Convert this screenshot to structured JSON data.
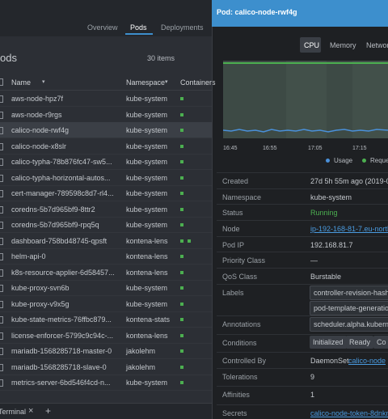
{
  "tabs": [
    "Overview",
    "Pods",
    "Deployments"
  ],
  "list": {
    "title": "ods",
    "count": "30 items",
    "columns": [
      "Name",
      "Namespace",
      "Containers"
    ],
    "rows": [
      {
        "name": "aws-node-hpz7f",
        "namespace": "kube-system",
        "containers": 1
      },
      {
        "name": "aws-node-r9rgs",
        "namespace": "kube-system",
        "containers": 1
      },
      {
        "name": "calico-node-rwf4g",
        "namespace": "kube-system",
        "containers": 1
      },
      {
        "name": "calico-node-x8slr",
        "namespace": "kube-system",
        "containers": 1
      },
      {
        "name": "calico-typha-78b876fc47-sw5...",
        "namespace": "kube-system",
        "containers": 1
      },
      {
        "name": "calico-typha-horizontal-autos...",
        "namespace": "kube-system",
        "containers": 1
      },
      {
        "name": "cert-manager-789598c8d7-rl4...",
        "namespace": "kube-system",
        "containers": 1
      },
      {
        "name": "coredns-5b7d965bf9-8ttr2",
        "namespace": "kube-system",
        "containers": 1
      },
      {
        "name": "coredns-5b7d965bf9-rpq5q",
        "namespace": "kube-system",
        "containers": 1
      },
      {
        "name": "dashboard-758bd48745-qpsft",
        "namespace": "kontena-lens",
        "containers": 2
      },
      {
        "name": "helm-api-0",
        "namespace": "kontena-lens",
        "containers": 1
      },
      {
        "name": "k8s-resource-applier-6d58457...",
        "namespace": "kontena-lens",
        "containers": 1
      },
      {
        "name": "kube-proxy-svn6b",
        "namespace": "kube-system",
        "containers": 1
      },
      {
        "name": "kube-proxy-v9x5g",
        "namespace": "kube-system",
        "containers": 1
      },
      {
        "name": "kube-state-metrics-76ffbc879...",
        "namespace": "kontena-stats",
        "containers": 1
      },
      {
        "name": "license-enforcer-5799c9c94c-...",
        "namespace": "kontena-lens",
        "containers": 1
      },
      {
        "name": "mariadb-1568285718-master-0",
        "namespace": "jakolehm",
        "containers": 1
      },
      {
        "name": "mariadb-1568285718-slave-0",
        "namespace": "jakolehm",
        "containers": 1
      },
      {
        "name": "metrics-server-6bd546f4cd-n...",
        "namespace": "kube-system",
        "containers": 1
      }
    ]
  },
  "footer": {
    "terminal": "Terminal",
    "close": "×",
    "add": "+"
  },
  "details": {
    "title": "Pod: calico-node-rwf4g",
    "metric_tabs": [
      "CPU",
      "Memory",
      "Networ"
    ],
    "times": [
      "16:45",
      "16:55",
      "17:05",
      "17:15"
    ],
    "legend": [
      "Usage",
      "Reque"
    ],
    "fields": [
      {
        "label": "Created",
        "values": [
          "27d 5h 55m ago (2019-08"
        ]
      },
      {
        "label": "Namespace",
        "values": [
          "kube-system"
        ]
      },
      {
        "label": "Status",
        "values": [
          "Running"
        ]
      },
      {
        "label": "Node",
        "values": [
          "ip-192-168-81-7.eu-north-1"
        ]
      },
      {
        "label": "Pod IP",
        "values": [
          "192.168.81.7"
        ]
      },
      {
        "label": "Priority Class",
        "values": [
          "—"
        ]
      },
      {
        "label": "QoS Class",
        "values": [
          "Burstable"
        ]
      },
      {
        "label": "Labels",
        "values": [
          "controller-revision-hash: 5",
          "pod-template-generation:"
        ]
      },
      {
        "label": "Annotations",
        "values": [
          "scheduler.alpha.kubernet"
        ]
      },
      {
        "label": "Conditions",
        "values": [
          "Initialized",
          "Ready",
          "Co"
        ]
      },
      {
        "label": "Controlled By",
        "values": [
          "DaemonSet",
          "calico-node"
        ]
      },
      {
        "label": "Tolerations",
        "values": [
          "9"
        ]
      },
      {
        "label": "Affinities",
        "values": [
          "1"
        ]
      },
      {
        "label": "Secrets",
        "values": [
          "calico-node-token-8dnkm"
        ]
      }
    ]
  }
}
